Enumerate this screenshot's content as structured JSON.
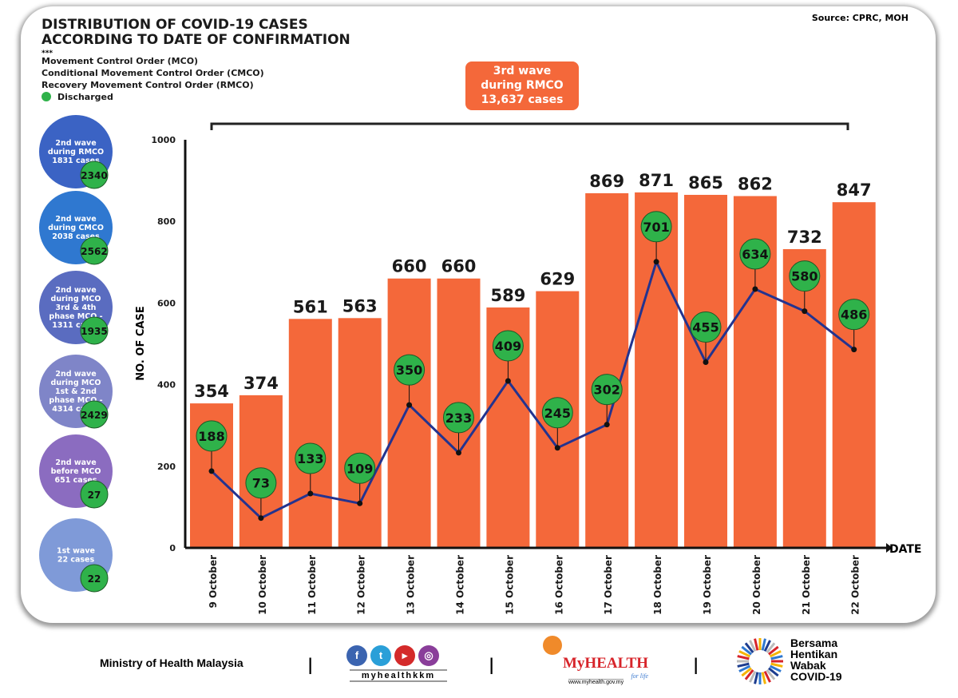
{
  "header": {
    "title_line1": "DISTRIBUTION OF COVID-19 CASES",
    "title_line2": "ACCORDING TO DATE OF CONFIRMATION",
    "stars": "***",
    "legend": [
      "Movement Control Order (MCO)",
      "Conditional Movement Control Order (CMCO)",
      "Recovery Movement Control Order (RMCO)"
    ],
    "discharged_label": "Discharged",
    "source": "Source: CPRC, MOH"
  },
  "wave3": {
    "line1": "3rd wave",
    "line2": "during RMCO",
    "line3": "13,637 cases"
  },
  "waves": [
    {
      "lines": [
        "2nd wave",
        "during RMCO",
        "1831 cases"
      ],
      "discharged": "2340",
      "color": "#3b63c4"
    },
    {
      "lines": [
        "2nd wave",
        "during CMCO",
        "2038 cases"
      ],
      "discharged": "2562",
      "color": "#2f78d0"
    },
    {
      "lines": [
        "2nd wave",
        "during MCO",
        "3rd & 4th",
        "phase MCO -",
        "1311 cases"
      ],
      "discharged": "1935",
      "color": "#5a6cc0"
    },
    {
      "lines": [
        "2nd wave",
        "during MCO",
        "1st & 2nd",
        "phase MCO -",
        "4314 cases"
      ],
      "discharged": "2429",
      "color": "#7f85c8"
    },
    {
      "lines": [
        "2nd wave",
        "before MCO",
        "651 cases"
      ],
      "discharged": "27",
      "color": "#8b6cc0"
    },
    {
      "lines": [
        "1st wave",
        "22 cases"
      ],
      "discharged": "22",
      "color": "#7f9ad8"
    }
  ],
  "chart_data": {
    "type": "bar",
    "categories": [
      "9 October",
      "10 October",
      "11 October",
      "12 October",
      "13 October",
      "14 October",
      "15 October",
      "16 October",
      "17 October",
      "18 October",
      "19 October",
      "20 October",
      "21 October",
      "22 October"
    ],
    "series": [
      {
        "values": [
          354,
          374,
          561,
          563,
          660,
          660,
          589,
          629,
          869,
          871,
          865,
          862,
          732,
          847
        ],
        "color": "#f4683a",
        "kind": "bar"
      },
      {
        "name": "Discharged",
        "values": [
          188,
          73,
          133,
          109,
          350,
          233,
          409,
          245,
          302,
          701,
          455,
          634,
          580,
          486
        ],
        "color": "#2fb24a",
        "line_color": "#23338f",
        "kind": "line"
      }
    ],
    "ylabel": "NO. OF CASE",
    "xlabel": "DATE",
    "ylim": [
      0,
      1000
    ],
    "yticks": [
      0,
      200,
      400,
      600,
      800,
      1000
    ],
    "grid": false
  },
  "footer": {
    "ministry": "Ministry of Health Malaysia",
    "separator": "|",
    "social_handle": "myhealthkkm",
    "myhealth": "MyHEALTH",
    "myhealth_tag": "for life",
    "myhealth_url": "www.myhealth.gov.my",
    "campaign": [
      "Bersama",
      "Hentikan",
      "Wabak",
      "COVID-19"
    ]
  }
}
